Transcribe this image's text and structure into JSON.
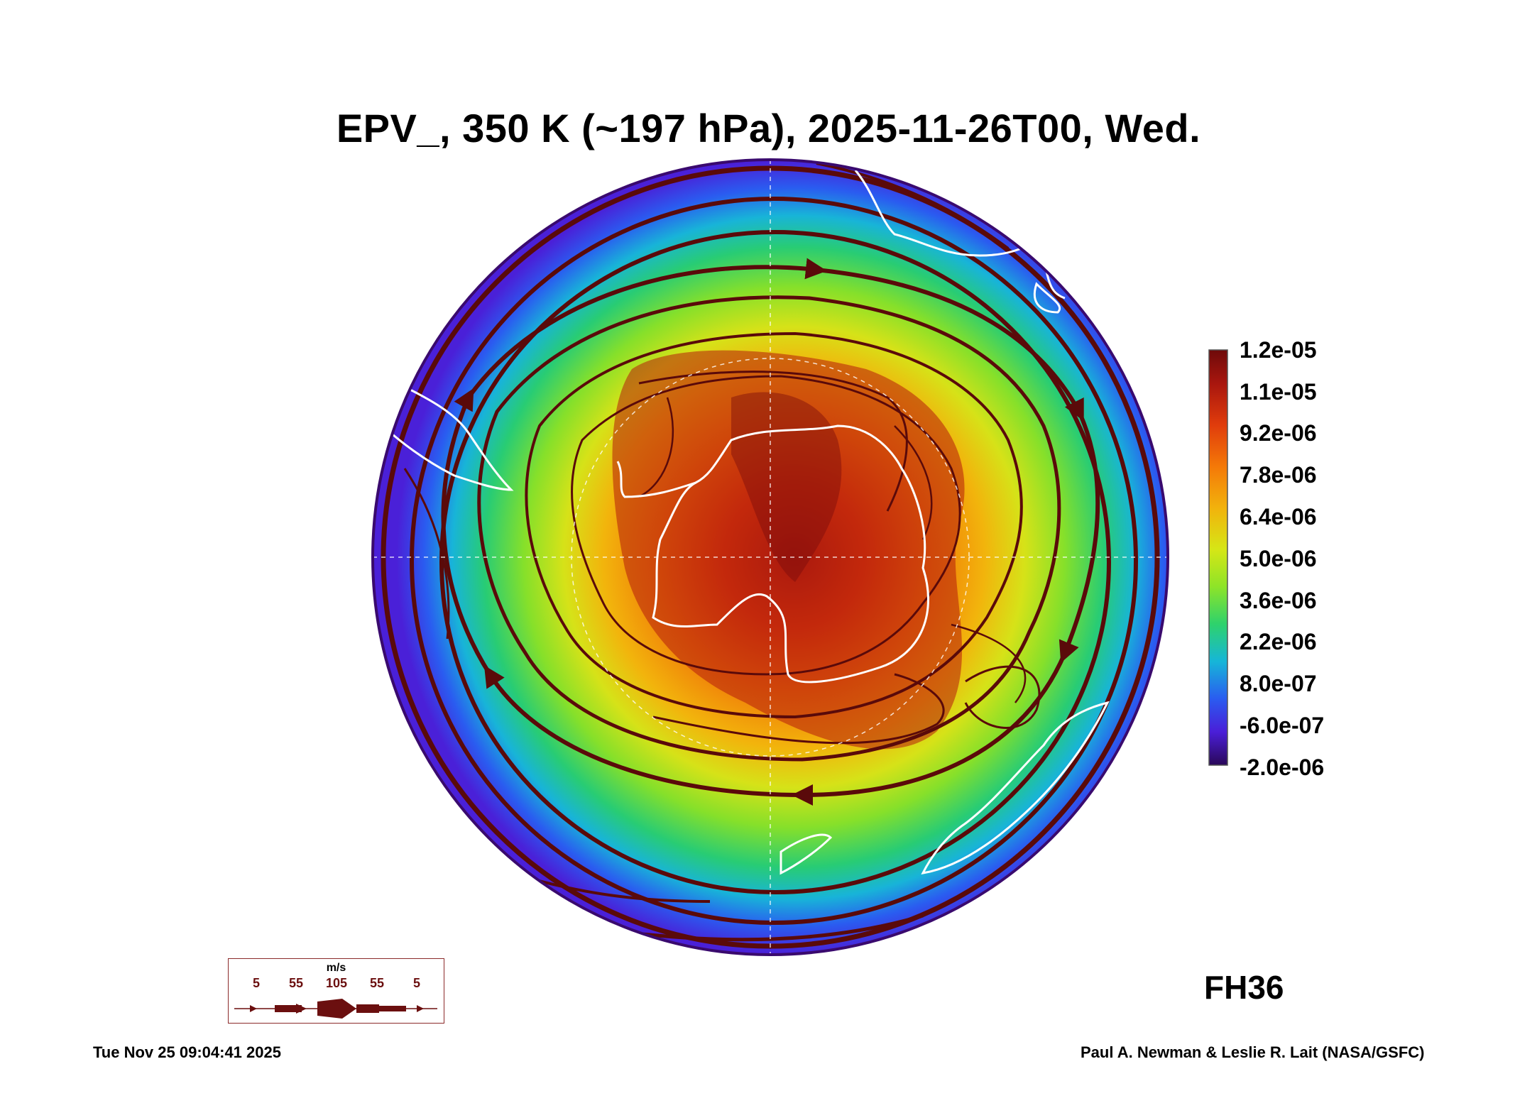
{
  "title": "EPV_, 350 K (~197 hPa), 2025-11-26T00, Wed.",
  "colorbar": {
    "labels": [
      "1.2e-05",
      "1.1e-05",
      "9.2e-06",
      "7.8e-06",
      "6.4e-06",
      "5.0e-06",
      "3.6e-06",
      "2.2e-06",
      "8.0e-07",
      "-6.0e-07",
      "-2.0e-06"
    ],
    "colors": [
      "#6e0a0a",
      "#b01a10",
      "#e8420a",
      "#f57c08",
      "#f2b80c",
      "#d8e615",
      "#8ee625",
      "#2dd46a",
      "#16b8d6",
      "#2a5ef0",
      "#4422e0",
      "#5b14b8",
      "#3a0a6e"
    ]
  },
  "vector_legend": {
    "unit": "m/s",
    "speeds": [
      "5",
      "55",
      "105",
      "55",
      "5"
    ]
  },
  "forecast_hour": "FH36",
  "timestamp": "Tue Nov 25 09:04:41 2025",
  "credit": "Paul A. Newman & Leslie R. Lait (NASA/GSFC)",
  "colors": {
    "streamline": "#5a0a0a",
    "coastline": "#ffffff",
    "frame": "#8b2a2a"
  }
}
